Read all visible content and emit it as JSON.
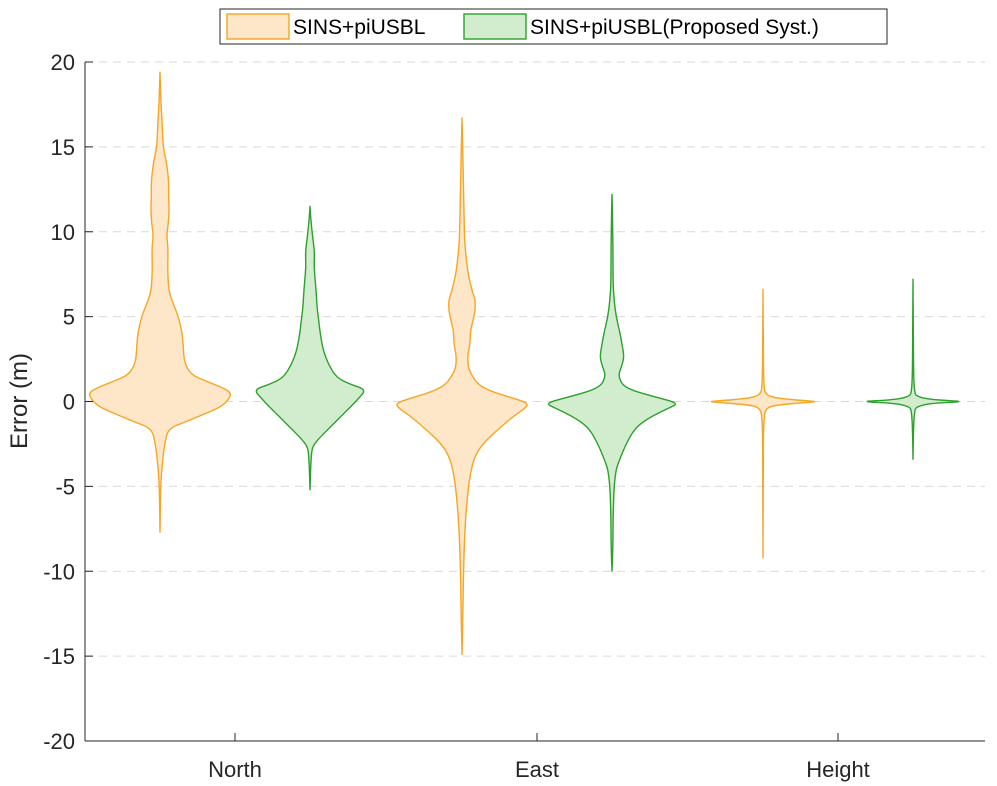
{
  "chart_data": {
    "type": "violin",
    "title": "",
    "xlabel": "",
    "ylabel": "Error (m)",
    "categories": [
      "North",
      "East",
      "Height"
    ],
    "ylim": [
      -20,
      20
    ],
    "yticks": [
      20,
      15,
      10,
      5,
      0,
      -5,
      -10,
      -15,
      -20
    ],
    "grid": "horizontal-dashed",
    "legend_position": "top-center",
    "series": [
      {
        "name": "SINS+piUSBL",
        "stroke": "#F5A623",
        "fill": "#FDE7C8",
        "violins": [
          {
            "category": "North",
            "min": -7.7,
            "max": 19.4,
            "profile": [
              [
                -7.7,
                0.0
              ],
              [
                -5.5,
                0.05
              ],
              [
                -4.6,
                0.1
              ],
              [
                -3.5,
                0.25
              ],
              [
                -2.5,
                0.45
              ],
              [
                -1.6,
                0.8
              ],
              [
                -1.2,
                2.5
              ],
              [
                -0.7,
                4.5
              ],
              [
                -0.3,
                6.0
              ],
              [
                0.1,
                6.7
              ],
              [
                0.5,
                7.0
              ],
              [
                0.8,
                6.2
              ],
              [
                1.2,
                4.5
              ],
              [
                1.6,
                3.0
              ],
              [
                2.3,
                2.4
              ],
              [
                3.0,
                2.3
              ],
              [
                4.0,
                2.2
              ],
              [
                5.0,
                1.8
              ],
              [
                5.6,
                1.4
              ],
              [
                6.3,
                0.95
              ],
              [
                7.0,
                0.8
              ],
              [
                8.0,
                0.75
              ],
              [
                9.0,
                0.8
              ],
              [
                9.8,
                0.65
              ],
              [
                10.4,
                0.8
              ],
              [
                11.2,
                0.9
              ],
              [
                12.0,
                0.85
              ],
              [
                13.0,
                0.85
              ],
              [
                13.8,
                0.7
              ],
              [
                14.5,
                0.5
              ],
              [
                15.1,
                0.3
              ],
              [
                15.8,
                0.25
              ],
              [
                16.5,
                0.2
              ],
              [
                17.5,
                0.1
              ],
              [
                18.5,
                0.05
              ],
              [
                19.4,
                0.0
              ]
            ]
          },
          {
            "category": "East",
            "min": -14.9,
            "max": 16.7,
            "profile": [
              [
                -14.9,
                0.0
              ],
              [
                -13.5,
                0.05
              ],
              [
                -12.0,
                0.1
              ],
              [
                -10.0,
                0.15
              ],
              [
                -8.0,
                0.25
              ],
              [
                -6.5,
                0.4
              ],
              [
                -5.2,
                0.6
              ],
              [
                -4.3,
                0.8
              ],
              [
                -3.3,
                1.2
              ],
              [
                -2.5,
                2.0
              ],
              [
                -1.5,
                3.8
              ],
              [
                -0.8,
                5.2
              ],
              [
                -0.4,
                6.2
              ],
              [
                -0.1,
                6.5
              ],
              [
                0.2,
                5.0
              ],
              [
                0.6,
                2.8
              ],
              [
                1.0,
                1.6
              ],
              [
                1.5,
                1.0
              ],
              [
                2.0,
                0.6
              ],
              [
                2.7,
                0.55
              ],
              [
                3.4,
                0.8
              ],
              [
                4.0,
                0.8
              ],
              [
                4.6,
                1.0
              ],
              [
                5.3,
                1.3
              ],
              [
                6.0,
                1.3
              ],
              [
                6.5,
                1.0
              ],
              [
                7.5,
                0.6
              ],
              [
                8.5,
                0.4
              ],
              [
                9.5,
                0.25
              ],
              [
                11.0,
                0.2
              ],
              [
                12.5,
                0.15
              ],
              [
                14.0,
                0.1
              ],
              [
                15.5,
                0.05
              ],
              [
                16.7,
                0.0
              ]
            ]
          },
          {
            "category": "Height",
            "min": -9.2,
            "max": 6.6,
            "profile": [
              [
                -9.2,
                0.0
              ],
              [
                -5.0,
                0.02
              ],
              [
                -2.0,
                0.04
              ],
              [
                -1.0,
                0.1
              ],
              [
                -0.4,
                0.25
              ],
              [
                -0.2,
                1.3
              ],
              [
                -0.05,
                4.5
              ],
              [
                0.0,
                5.3
              ],
              [
                0.05,
                4.0
              ],
              [
                0.2,
                1.3
              ],
              [
                0.4,
                0.25
              ],
              [
                0.9,
                0.08
              ],
              [
                3.0,
                0.03
              ],
              [
                6.6,
                0.0
              ]
            ]
          }
        ]
      },
      {
        "name": "SINS+piUSBL(Proposed Syst.)",
        "stroke": "#2CA02C",
        "fill": "#D2EDCD",
        "violins": [
          {
            "category": "North",
            "min": -5.2,
            "max": 11.5,
            "profile": [
              [
                -5.2,
                0.0
              ],
              [
                -4.2,
                0.05
              ],
              [
                -3.5,
                0.1
              ],
              [
                -3.0,
                0.15
              ],
              [
                -2.6,
                0.3
              ],
              [
                -2.1,
                1.0
              ],
              [
                -1.5,
                2.0
              ],
              [
                -0.9,
                3.0
              ],
              [
                -0.3,
                4.0
              ],
              [
                0.2,
                4.8
              ],
              [
                0.7,
                5.5
              ],
              [
                1.0,
                4.0
              ],
              [
                1.4,
                2.6
              ],
              [
                2.2,
                1.8
              ],
              [
                3.0,
                1.3
              ],
              [
                4.0,
                1.0
              ],
              [
                4.8,
                0.85
              ],
              [
                5.5,
                0.7
              ],
              [
                6.5,
                0.6
              ],
              [
                7.2,
                0.5
              ],
              [
                8.0,
                0.4
              ],
              [
                8.8,
                0.45
              ],
              [
                9.5,
                0.3
              ],
              [
                10.3,
                0.15
              ],
              [
                11.0,
                0.05
              ],
              [
                11.5,
                0.0
              ]
            ]
          },
          {
            "category": "East",
            "min": -10.0,
            "max": 12.2,
            "profile": [
              [
                -10.0,
                0.0
              ],
              [
                -9.2,
                0.05
              ],
              [
                -8.0,
                0.1
              ],
              [
                -7.0,
                0.1
              ],
              [
                -6.0,
                0.15
              ],
              [
                -5.0,
                0.2
              ],
              [
                -4.0,
                0.4
              ],
              [
                -3.5,
                0.7
              ],
              [
                -2.6,
                1.3
              ],
              [
                -1.6,
                2.2
              ],
              [
                -1.0,
                3.5
              ],
              [
                -0.4,
                5.5
              ],
              [
                -0.1,
                6.6
              ],
              [
                0.3,
                4.0
              ],
              [
                0.8,
                1.2
              ],
              [
                1.5,
                0.6
              ],
              [
                2.0,
                0.9
              ],
              [
                2.6,
                1.2
              ],
              [
                3.3,
                1.0
              ],
              [
                4.0,
                0.8
              ],
              [
                5.0,
                0.4
              ],
              [
                6.0,
                0.2
              ],
              [
                7.0,
                0.1
              ],
              [
                8.5,
                0.1
              ],
              [
                10.0,
                0.07
              ],
              [
                11.5,
                0.03
              ],
              [
                12.2,
                0.0
              ]
            ]
          },
          {
            "category": "Height",
            "min": -3.4,
            "max": 7.2,
            "profile": [
              [
                -3.4,
                0.0
              ],
              [
                -1.5,
                0.05
              ],
              [
                -0.6,
                0.15
              ],
              [
                -0.3,
                0.3
              ],
              [
                -0.1,
                1.8
              ],
              [
                0.0,
                5.4
              ],
              [
                0.1,
                1.8
              ],
              [
                0.3,
                0.3
              ],
              [
                0.6,
                0.15
              ],
              [
                1.5,
                0.06
              ],
              [
                4.0,
                0.03
              ],
              [
                7.2,
                0.0
              ]
            ]
          }
        ]
      }
    ]
  }
}
